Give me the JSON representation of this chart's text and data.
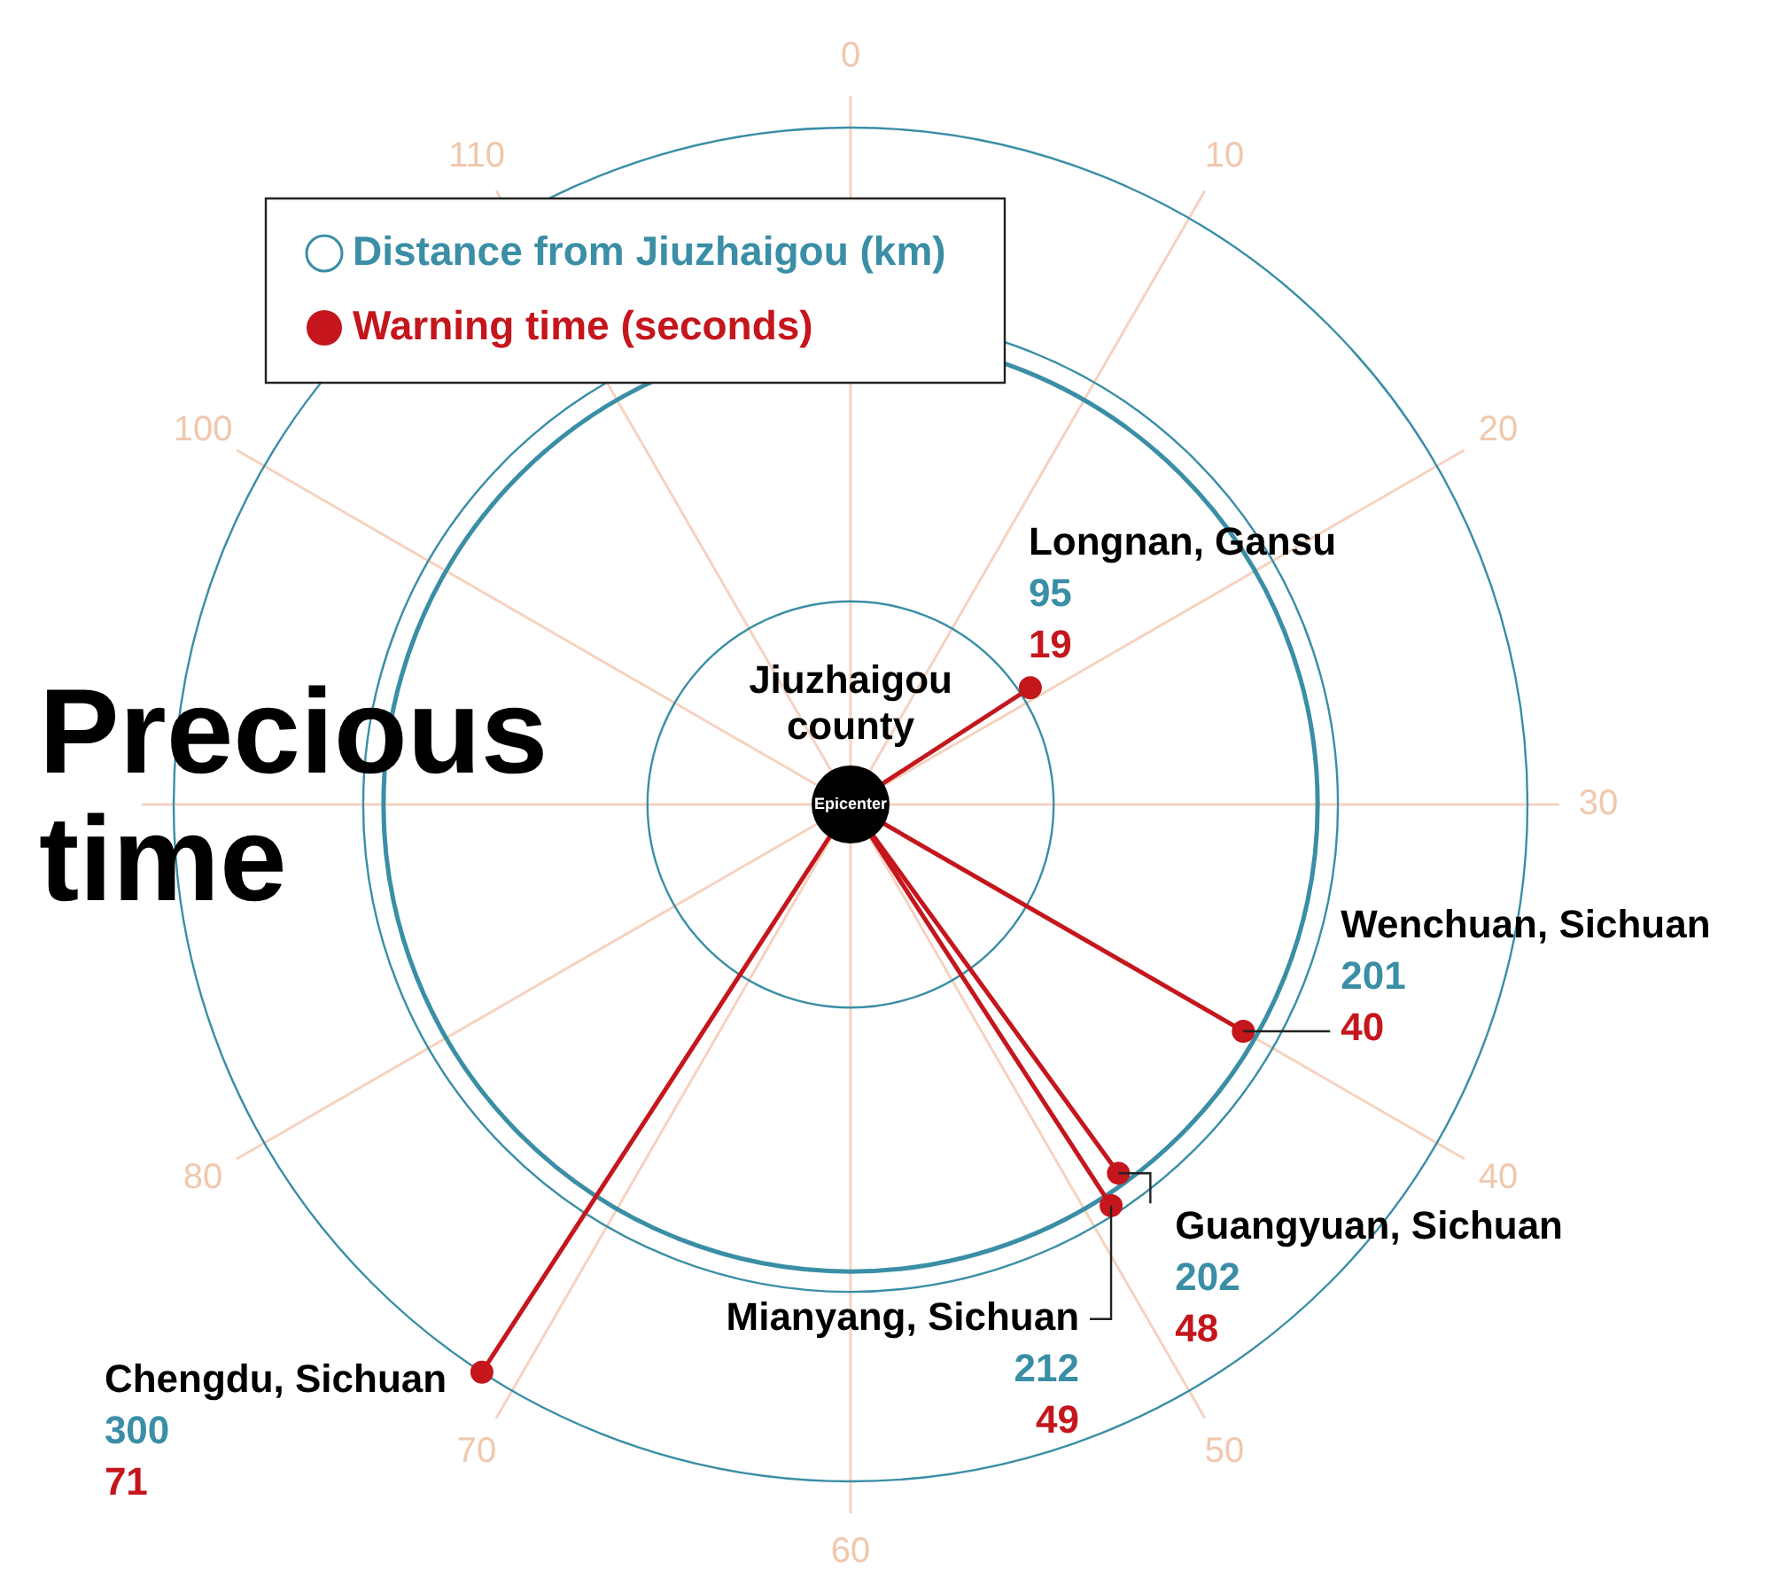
{
  "chart_data": {
    "type": "other",
    "title": "Precious time",
    "legend": "top left",
    "data_labels": true,
    "categories": [
      "Longnan, Gansu",
      "Wenchuan, Sichuan",
      "Guangyuan, Sichuan",
      "Mianyang, Sichuan",
      "Chengdu, Sichuan"
    ],
    "series": [
      {
        "name": "Distance from Jiuzhaigou (km)",
        "color": "#3a8ea6",
        "values": [
          95,
          201,
          202,
          212,
          300
        ]
      },
      {
        "name": "Warning time (seconds)",
        "color": "#c4161c",
        "values": [
          19,
          40,
          48,
          49,
          71
        ]
      }
    ],
    "annotations": [
      "Jiuzhaigou county",
      "Epicenter",
      "0",
      "10",
      "20",
      "30",
      "40",
      "50",
      "60",
      "70",
      "80",
      null,
      "100",
      "110"
    ]
  }
}
